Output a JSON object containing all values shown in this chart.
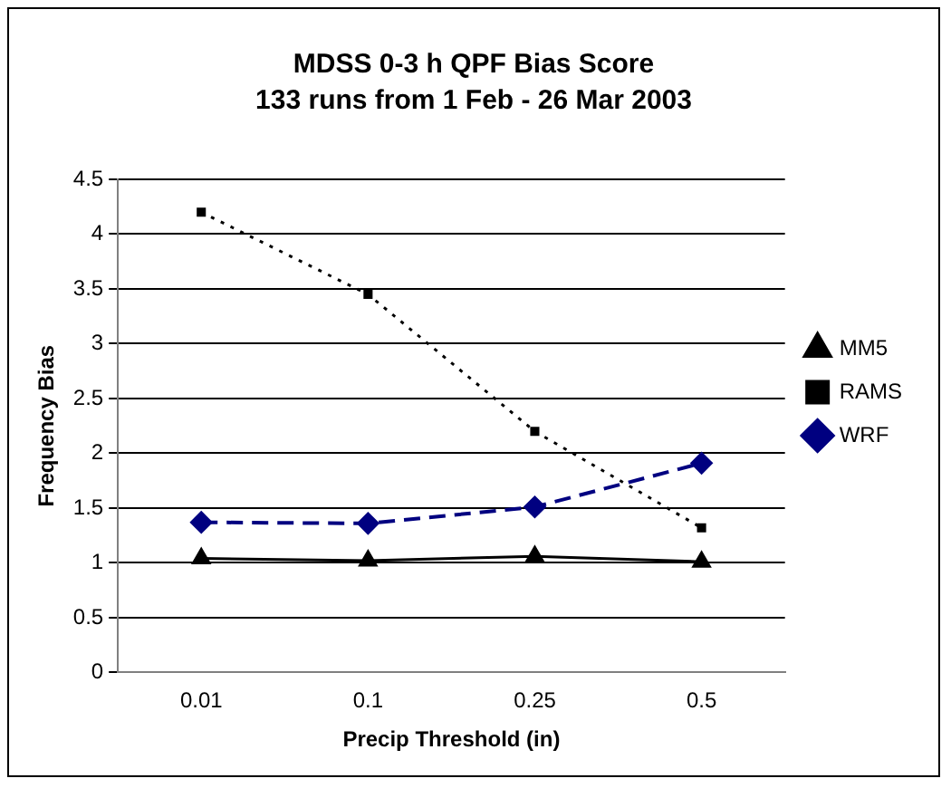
{
  "chart_data": {
    "type": "line",
    "title": "MDSS 0-3 h QPF Bias Score",
    "subtitle": "133 runs from 1 Feb - 26 Mar 2003",
    "xlabel": "Precip Threshold (in)",
    "ylabel": "Frequency Bias",
    "categories": [
      "0.01",
      "0.1",
      "0.25",
      "0.5"
    ],
    "series": [
      {
        "name": "MM5",
        "color": "#000000",
        "values": [
          1.04,
          1.02,
          1.06,
          1.01
        ],
        "marker": "triangle",
        "line_style": "solid"
      },
      {
        "name": "RAMS",
        "color": "#000000",
        "values": [
          4.2,
          3.45,
          2.2,
          1.32
        ],
        "marker": "square",
        "line_style": "dotted"
      },
      {
        "name": "WRF",
        "color": "#000080",
        "values": [
          1.37,
          1.36,
          1.51,
          1.91
        ],
        "marker": "diamond",
        "line_style": "dashed"
      }
    ],
    "ylim": [
      0,
      4.5
    ],
    "yticks": [
      0,
      0.5,
      1,
      1.5,
      2,
      2.5,
      3,
      3.5,
      4,
      4.5
    ],
    "grid": "y",
    "legend": "right"
  }
}
